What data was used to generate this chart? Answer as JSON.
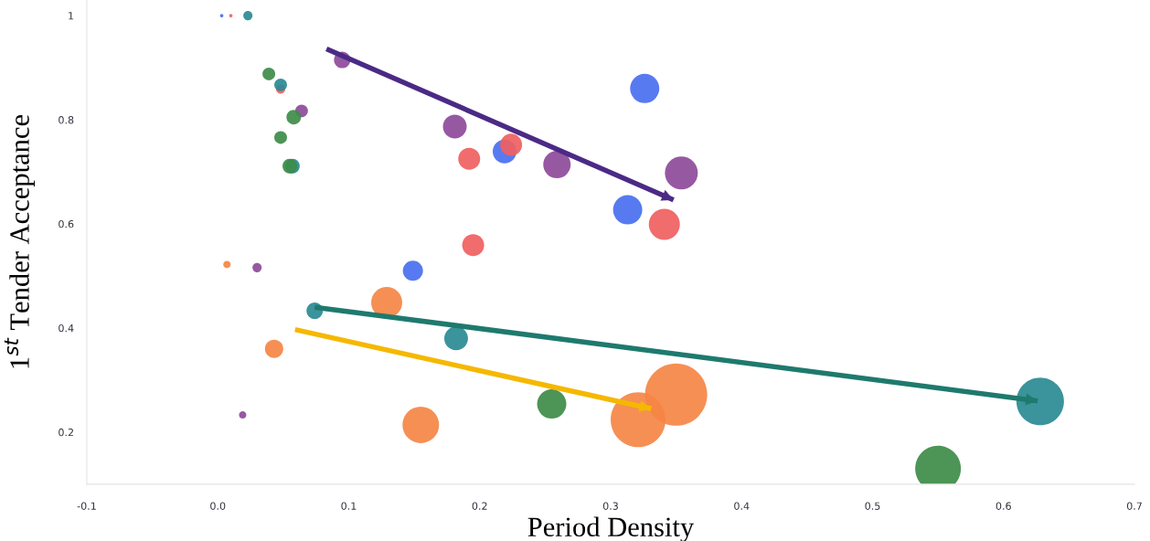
{
  "chart_data": {
    "type": "bubble",
    "xlabel": "Period Density",
    "ylabel": "1$^{st}$ Tender Acceptance",
    "xlim": [
      -0.1,
      0.7
    ],
    "ylim": [
      0.1,
      1.03
    ],
    "xticks": [
      {
        "value": -0.1,
        "label": "-0.1"
      },
      {
        "value": 0.0,
        "label": "0.0"
      },
      0.1,
      0.2,
      0.3,
      0.4,
      0.5,
      0.6,
      0.7
    ],
    "yticks": [
      0.2,
      0.4,
      0.6,
      0.8,
      1
    ],
    "grid": false,
    "legend": false,
    "series": [
      {
        "color": "#4a6ff0",
        "x": [
          0.003,
          0.326,
          0.219,
          0.313,
          0.149
        ],
        "values": [
          1.0,
          0.86,
          0.739,
          0.627,
          0.51
        ],
        "sizes": [
          0.003,
          0.221,
          0.146,
          0.221,
          0.105
        ]
      },
      {
        "color": "#f0605f",
        "x": [
          0.01,
          0.048,
          0.192,
          0.224,
          0.341,
          0.195
        ],
        "values": [
          1.0,
          0.859,
          0.725,
          0.752,
          0.599,
          0.559
        ],
        "sizes": [
          0.003,
          0.022,
          0.125,
          0.125,
          0.25,
          0.125
        ]
      },
      {
        "color": "#8e4a9a",
        "x": [
          0.095,
          0.064,
          0.181,
          0.259,
          0.354,
          0.03,
          0.019
        ],
        "values": [
          0.915,
          0.817,
          0.787,
          0.714,
          0.698,
          0.516,
          0.233
        ],
        "sizes": [
          0.07,
          0.042,
          0.146,
          0.195,
          0.28,
          0.022,
          0.014
        ]
      },
      {
        "color": "#2a8a94",
        "x": [
          0.023,
          0.048,
          0.057,
          0.074,
          0.182,
          0.628
        ],
        "values": [
          1.0,
          0.867,
          0.711,
          0.433,
          0.38,
          0.259
        ],
        "sizes": [
          0.022,
          0.042,
          0.055,
          0.07,
          0.146,
          0.585
        ]
      },
      {
        "color": "#3d8c48",
        "x": [
          0.039,
          0.058,
          0.048,
          0.055,
          0.255,
          0.55
        ],
        "values": [
          0.888,
          0.805,
          0.766,
          0.711,
          0.254,
          0.13
        ],
        "sizes": [
          0.042,
          0.055,
          0.042,
          0.055,
          0.221,
          0.54
        ]
      },
      {
        "color": "#f58545",
        "x": [
          0.007,
          0.043,
          0.129,
          0.155,
          0.321,
          0.35
        ],
        "values": [
          0.522,
          0.36,
          0.449,
          0.214,
          0.224,
          0.272
        ],
        "sizes": [
          0.014,
          0.087,
          0.25,
          0.346,
          0.78,
          1
        ]
      },
      {
        "type": "line",
        "color": "#4b2a86",
        "x": [
          0.083,
          0.348
        ],
        "values": [
          0.936,
          0.646
        ]
      },
      {
        "type": "line",
        "color": "#1f7a6e",
        "x": [
          0.074,
          0.626
        ],
        "values": [
          0.44,
          0.26
        ]
      },
      {
        "type": "line",
        "color": "#f5b800",
        "x": [
          0.059,
          0.331
        ],
        "values": [
          0.397,
          0.245
        ]
      }
    ]
  }
}
